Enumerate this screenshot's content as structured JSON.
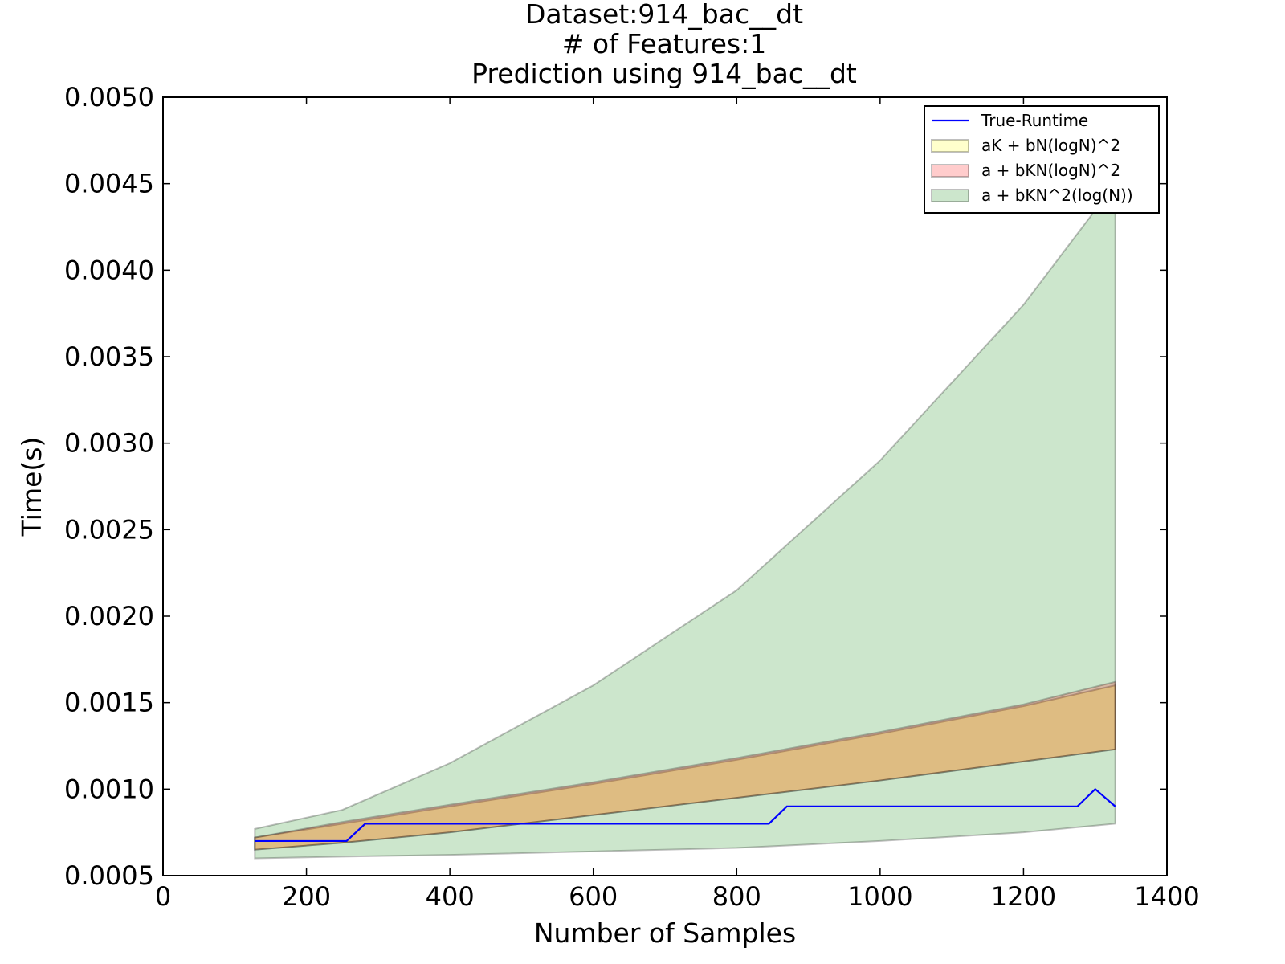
{
  "chart_data": {
    "type": "area",
    "title_lines": [
      "Dataset:914_bac__dt",
      "# of Features:1",
      "Prediction using 914_bac__dt"
    ],
    "xlabel": "Number of Samples",
    "ylabel": "Time(s)",
    "xlim": [
      0,
      1400
    ],
    "ylim": [
      0.0005,
      0.005
    ],
    "xticks": [
      0,
      200,
      400,
      600,
      800,
      1000,
      1200,
      1400
    ],
    "xtick_labels": [
      "0",
      "200",
      "400",
      "600",
      "800",
      "1000",
      "1200",
      "1400"
    ],
    "yticks": [
      0.0005,
      0.001,
      0.0015,
      0.002,
      0.0025,
      0.003,
      0.0035,
      0.004,
      0.0045,
      0.005
    ],
    "ytick_labels": [
      "0.0005",
      "0.0010",
      "0.0015",
      "0.0020",
      "0.0025",
      "0.0030",
      "0.0035",
      "0.0040",
      "0.0045",
      "0.0050"
    ],
    "legend_position": "top-right",
    "grid": false,
    "line": {
      "name": "True-Runtime",
      "color": "#0000ff",
      "x": [
        128,
        256,
        282,
        512,
        845,
        870,
        1275,
        1300,
        1328
      ],
      "y": [
        0.0007,
        0.0007,
        0.0008,
        0.0008,
        0.0008,
        0.0009,
        0.0009,
        0.001,
        0.0009
      ]
    },
    "bands": [
      {
        "name": "a + bKN^2(log(N))",
        "color": "#008000",
        "alpha": 0.2,
        "x": [
          128,
          250,
          400,
          600,
          800,
          1000,
          1200,
          1328
        ],
        "lower": [
          0.0006,
          0.00061,
          0.00062,
          0.00064,
          0.00066,
          0.0007,
          0.00075,
          0.0008
        ],
        "upper": [
          0.00077,
          0.00088,
          0.00115,
          0.0016,
          0.00215,
          0.0029,
          0.0038,
          0.0045
        ]
      },
      {
        "name": "aK + bN(logN)^2",
        "color": "#ffff00",
        "alpha": 0.2,
        "x": [
          128,
          250,
          400,
          600,
          800,
          1000,
          1200,
          1328
        ],
        "lower": [
          0.00065,
          0.00069,
          0.00075,
          0.00085,
          0.00095,
          0.00105,
          0.00116,
          0.00123
        ],
        "upper": [
          0.00072,
          0.0008,
          0.0009,
          0.00103,
          0.00117,
          0.00132,
          0.00148,
          0.0016
        ]
      },
      {
        "name": "a + bKN(logN)^2",
        "color": "#ff0000",
        "alpha": 0.2,
        "x": [
          128,
          250,
          400,
          600,
          800,
          1000,
          1200,
          1328
        ],
        "lower": [
          0.00065,
          0.00069,
          0.00075,
          0.00085,
          0.00095,
          0.00105,
          0.00116,
          0.00123
        ],
        "upper": [
          0.00072,
          0.00081,
          0.00091,
          0.00104,
          0.00118,
          0.00133,
          0.00149,
          0.00162
        ]
      }
    ],
    "legend": [
      {
        "label": "True-Runtime",
        "kind": "line",
        "color": "#0000ff"
      },
      {
        "label": "aK + bN(logN)^2",
        "kind": "patch",
        "color": "#ffff00",
        "alpha": 0.2
      },
      {
        "label": "a + bKN(logN)^2",
        "kind": "patch",
        "color": "#ff0000",
        "alpha": 0.2
      },
      {
        "label": "a + bKN^2(log(N))",
        "kind": "patch",
        "color": "#008000",
        "alpha": 0.2
      }
    ]
  }
}
